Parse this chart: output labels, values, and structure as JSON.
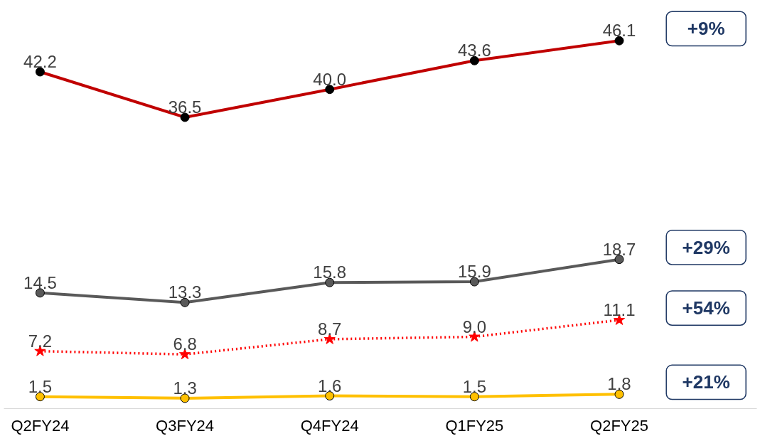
{
  "chart_data": {
    "type": "line",
    "categories": [
      "Q2FY24",
      "Q3FY24",
      "Q4FY24",
      "Q1FY25",
      "Q2FY25"
    ],
    "series": [
      {
        "color": "#c00000",
        "values": [
          42.2,
          36.5,
          40.0,
          43.6,
          46.1
        ],
        "value_labels": [
          "42.2",
          "36.5",
          "40.0",
          "43.6",
          "46.1"
        ],
        "marker": "circle",
        "line_style": "solid"
      },
      {
        "color": "#595959",
        "values": [
          14.5,
          13.3,
          15.8,
          15.9,
          18.7
        ],
        "value_labels": [
          "14.5",
          "13.3",
          "15.8",
          "15.9",
          "18.7"
        ],
        "marker": "circle",
        "line_style": "solid"
      },
      {
        "color": "#ff0000",
        "values": [
          7.2,
          6.8,
          8.7,
          9.0,
          11.1
        ],
        "value_labels": [
          "7.2",
          "6.8",
          "8.7",
          "9.0",
          "11.1"
        ],
        "marker": "star",
        "line_style": "dotted"
      },
      {
        "color": "#ffc000",
        "values": [
          1.5,
          1.3,
          1.6,
          1.5,
          1.8
        ],
        "value_labels": [
          "1.5",
          "1.3",
          "1.6",
          "1.5",
          "1.8"
        ],
        "marker": "circle",
        "line_style": "solid"
      }
    ],
    "annotations": [
      "+9%",
      "+29%",
      "+54%",
      "+21%"
    ],
    "grid": false
  }
}
